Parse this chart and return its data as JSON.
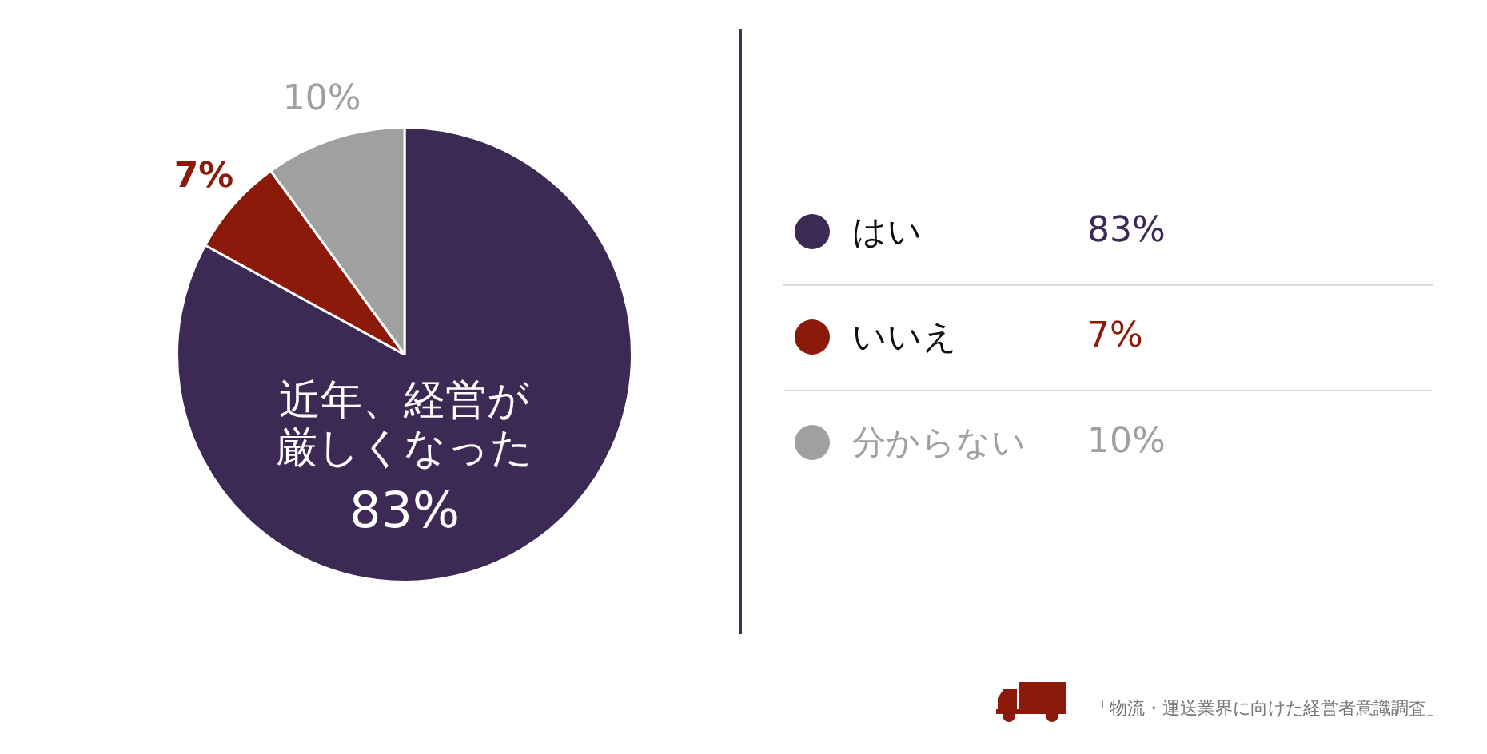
{
  "chart_data": {
    "type": "pie",
    "title": "近年、経営が厳しくなった",
    "categories": [
      "はい",
      "いいえ",
      "分からない"
    ],
    "values": [
      83,
      7,
      10
    ],
    "colors": [
      "#3c2a55",
      "#8b1a0a",
      "#a0a0a0"
    ],
    "value_labels": [
      "83%",
      "7%",
      "10%"
    ],
    "legend": "right",
    "annotations": [
      "「物流・運送業界に向けた経営者意識調査」"
    ]
  }
}
